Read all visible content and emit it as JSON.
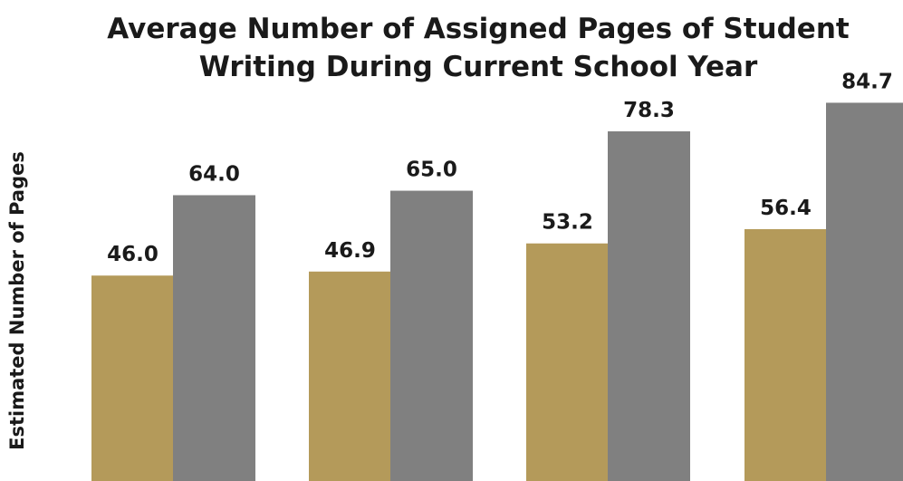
{
  "chart_data": {
    "type": "bar",
    "title_lines": [
      "Average Number of Assigned Pages of Student",
      "Writing During Current School Year"
    ],
    "ylabel": "Estimated Number of Pages",
    "xlabel": "",
    "categories": [
      "",
      "",
      "",
      ""
    ],
    "series": [
      {
        "values": [
          46.0,
          46.9,
          53.2,
          56.4
        ],
        "color": "#b49a5a"
      },
      {
        "values": [
          64.0,
          65.0,
          78.3,
          84.7
        ],
        "color": "#808080"
      }
    ],
    "value_labels": [
      [
        "46.0",
        "46.9",
        "53.2",
        "56.4"
      ],
      [
        "64.0",
        "65.0",
        "78.3",
        "84.7"
      ]
    ],
    "legend": "none",
    "grid": false
  }
}
